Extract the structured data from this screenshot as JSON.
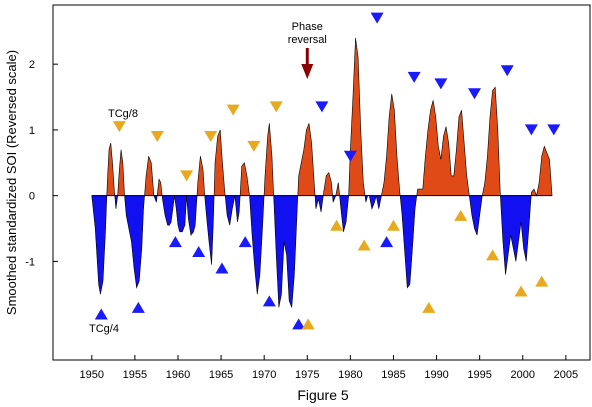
{
  "chart_data": {
    "type": "area",
    "title": "",
    "xlabel": "",
    "ylabel": "Smoothed standardized SOI (Reversed scale)",
    "caption": "Figure 5",
    "xlim": [
      1945.5,
      2007.8
    ],
    "ylim": [
      -2.5,
      2.9
    ],
    "x_ticks": [
      1950,
      1955,
      1960,
      1965,
      1970,
      1975,
      1980,
      1985,
      1990,
      1995,
      2000,
      2005
    ],
    "y_ticks": [
      -1,
      0,
      1,
      2
    ],
    "y_tick_labels": [
      "-1",
      "0",
      "1",
      "2"
    ],
    "grid": false,
    "legend": "none",
    "colors": {
      "positive": "#e04a16",
      "negative": "#1010f0",
      "tc_marker_blue": "#1a1aff",
      "tc_marker_orange": "#e8a91e",
      "phase_arrow": "#8b0000"
    },
    "series": [
      {
        "values_x": [
          1950.0,
          1950.4,
          1950.8,
          1951.0,
          1951.3,
          1951.6,
          1951.8,
          1952.0,
          1952.2,
          1952.4,
          1952.6,
          1952.8,
          1953.0,
          1953.2,
          1953.4,
          1953.6,
          1953.8,
          1954.0,
          1954.3,
          1954.6,
          1954.9,
          1955.2,
          1955.5,
          1955.8,
          1956.0,
          1956.3,
          1956.6,
          1956.9,
          1957.2,
          1957.5,
          1957.8,
          1958.0,
          1958.2,
          1958.5,
          1958.8,
          1959.0,
          1959.2,
          1959.4,
          1959.6,
          1959.8,
          1960.0,
          1960.2,
          1960.5,
          1960.8,
          1961.0,
          1961.2,
          1961.5,
          1961.8,
          1962.0,
          1962.3,
          1962.6,
          1962.9,
          1963.1,
          1963.3,
          1963.6,
          1963.9,
          1964.1,
          1964.3,
          1964.6,
          1964.9,
          1965.1,
          1965.4,
          1965.7,
          1966.0,
          1966.3,
          1966.6,
          1966.9,
          1967.1,
          1967.4,
          1967.7,
          1968.0,
          1968.3,
          1968.6,
          1968.9,
          1969.2,
          1969.5,
          1969.8,
          1970.1,
          1970.4,
          1970.6,
          1970.9,
          1971.1,
          1971.4,
          1971.7,
          1972.0,
          1972.3,
          1972.6,
          1972.9,
          1973.2,
          1973.5,
          1973.8,
          1974.0,
          1974.3,
          1974.6,
          1974.9,
          1975.2,
          1975.5,
          1975.8,
          1976.0,
          1976.3,
          1976.6,
          1976.9,
          1977.2,
          1977.5,
          1977.8,
          1978.0,
          1978.3,
          1978.6,
          1978.9,
          1979.2,
          1979.5,
          1979.8,
          1980.0,
          1980.3,
          1980.6,
          1980.9,
          1981.2,
          1981.5,
          1981.8,
          1982.0,
          1982.2,
          1982.5,
          1982.8,
          1983.0,
          1983.3,
          1983.6,
          1983.9,
          1984.2,
          1984.5,
          1984.8,
          1985.1,
          1985.4,
          1985.7,
          1986.0,
          1986.3,
          1986.6,
          1986.9,
          1987.2,
          1987.5,
          1987.8,
          1988.1,
          1988.4,
          1988.7,
          1989.0,
          1989.3,
          1989.6,
          1989.9,
          1990.2,
          1990.5,
          1990.8,
          1991.1,
          1991.4,
          1991.7,
          1992.0,
          1992.3,
          1992.6,
          1992.9,
          1993.2,
          1993.5,
          1993.8,
          1994.1,
          1994.4,
          1994.7,
          1995.0,
          1995.3,
          1995.6,
          1995.9,
          1996.2,
          1996.5,
          1996.8,
          1997.1,
          1997.4,
          1997.7,
          1998.0,
          1998.3,
          1998.6,
          1998.9,
          1999.2,
          1999.5,
          1999.8,
          2000.1,
          2000.4,
          2000.7,
          2001.0,
          2001.3,
          2001.6,
          2001.9,
          2002.2,
          2002.5,
          2002.8,
          2003.1,
          2003.4
        ],
        "values_y": [
          0.0,
          -0.5,
          -1.35,
          -1.5,
          -1.3,
          -0.5,
          0.2,
          0.7,
          0.8,
          0.5,
          0.1,
          -0.2,
          0.0,
          0.4,
          0.7,
          0.5,
          0.0,
          -0.3,
          -0.5,
          -0.7,
          -1.1,
          -1.4,
          -1.3,
          -0.8,
          -0.2,
          0.3,
          0.6,
          0.5,
          0.0,
          -0.1,
          0.25,
          0.2,
          -0.05,
          -0.3,
          -0.45,
          -0.45,
          -0.4,
          -0.2,
          0.0,
          -0.2,
          -0.45,
          -0.55,
          -0.55,
          -0.45,
          0.0,
          -0.35,
          -0.6,
          -0.55,
          -0.45,
          0.2,
          0.6,
          0.4,
          0.0,
          -0.3,
          -0.7,
          -1.05,
          -0.4,
          0.5,
          0.9,
          1.0,
          0.6,
          0.1,
          -0.3,
          -0.45,
          -0.2,
          0.0,
          -0.4,
          -0.25,
          0.45,
          0.5,
          0.3,
          0.0,
          -0.6,
          -1.1,
          -1.5,
          -1.2,
          -0.5,
          0.3,
          0.9,
          1.1,
          0.6,
          0.0,
          -0.9,
          -1.7,
          -1.5,
          -0.7,
          -0.9,
          -1.6,
          -1.7,
          -1.2,
          -0.3,
          0.3,
          0.5,
          0.7,
          1.0,
          1.1,
          0.8,
          0.2,
          -0.2,
          -0.05,
          -0.25,
          0.05,
          0.3,
          0.35,
          0.2,
          -0.1,
          0.0,
          0.2,
          -0.2,
          -0.55,
          -0.4,
          0.0,
          0.7,
          1.5,
          2.4,
          2.1,
          1.0,
          0.2,
          -0.1,
          0.0,
          0.0,
          -0.2,
          -0.1,
          0.0,
          -0.2,
          0.0,
          0.2,
          0.6,
          1.2,
          1.55,
          1.3,
          0.6,
          0.1,
          -0.3,
          -0.85,
          -1.4,
          -1.35,
          -0.8,
          -0.2,
          0.1,
          0.1,
          0.1,
          0.6,
          1.0,
          1.3,
          1.45,
          1.2,
          0.75,
          0.55,
          0.9,
          1.05,
          0.8,
          0.3,
          0.3,
          0.7,
          1.2,
          1.3,
          0.8,
          0.3,
          0.0,
          -0.3,
          -0.5,
          -0.6,
          -0.3,
          0.0,
          0.2,
          0.6,
          1.2,
          1.6,
          1.65,
          1.0,
          0.0,
          -0.7,
          -1.2,
          -0.9,
          -0.6,
          -0.8,
          -1.0,
          -0.7,
          -0.4,
          -0.8,
          -1.0,
          -0.5,
          0.05,
          0.1,
          0.0,
          0.2,
          0.6,
          0.75,
          0.65,
          0.55,
          0.0
        ],
        "name": ""
      }
    ],
    "markers": {
      "blue_up": [
        [
          1951.1,
          -1.8
        ],
        [
          1955.4,
          -1.7
        ],
        [
          1959.7,
          -0.7
        ],
        [
          1962.4,
          -0.85
        ],
        [
          1965.1,
          -1.1
        ],
        [
          1967.8,
          -0.7
        ],
        [
          1970.6,
          -1.6
        ],
        [
          1974.0,
          -1.95
        ],
        [
          1984.2,
          -0.7
        ]
      ],
      "blue_down": [
        [
          1976.7,
          1.35
        ],
        [
          1980.0,
          0.6
        ],
        [
          1983.1,
          2.7
        ],
        [
          1987.4,
          1.8
        ],
        [
          1990.5,
          1.7
        ],
        [
          1994.4,
          1.55
        ],
        [
          1998.2,
          1.9
        ],
        [
          2001.0,
          1.0
        ],
        [
          2003.6,
          1.0
        ]
      ],
      "orange_down": [
        [
          1953.2,
          1.05
        ],
        [
          1957.6,
          0.9
        ],
        [
          1961.0,
          0.3
        ],
        [
          1963.8,
          0.9
        ],
        [
          1966.4,
          1.3
        ],
        [
          1968.8,
          0.75
        ],
        [
          1971.4,
          1.35
        ]
      ],
      "orange_up": [
        [
          1975.1,
          -1.95
        ],
        [
          1978.4,
          -0.45
        ],
        [
          1981.6,
          -0.75
        ],
        [
          1985.0,
          -0.45
        ],
        [
          1989.1,
          -1.7
        ],
        [
          1992.8,
          -0.3
        ],
        [
          1996.5,
          -0.9
        ],
        [
          1999.8,
          -1.45
        ],
        [
          2002.2,
          -1.3
        ]
      ]
    },
    "annotations": {
      "tc_top": "TCg/8",
      "tc_bottom": "TCg/4",
      "phase_line1": "Phase",
      "phase_line2": "reversal",
      "phase_year": 1975.0
    }
  }
}
